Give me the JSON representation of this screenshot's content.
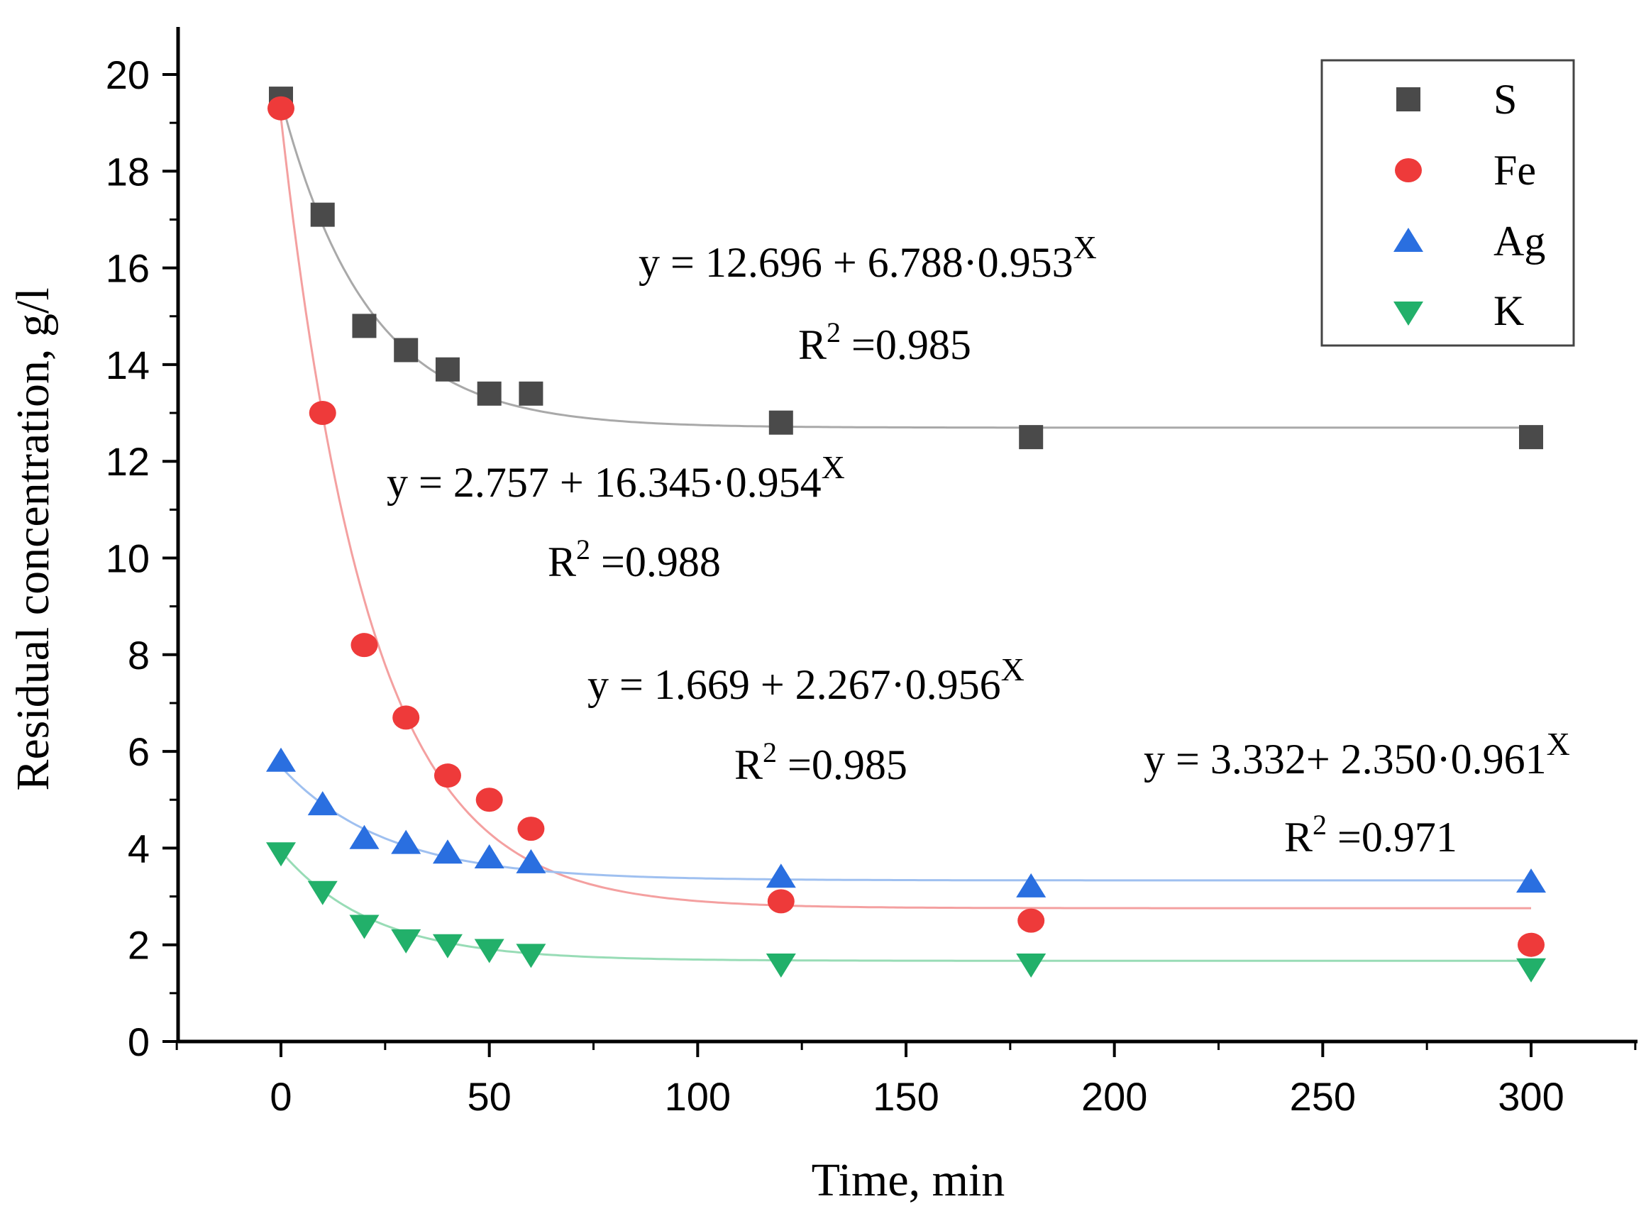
{
  "chart_data": {
    "type": "scatter",
    "xlabel": "Time, min",
    "ylabel": "Residual concentration, g/l",
    "xlim": [
      -25,
      325
    ],
    "ylim": [
      0,
      21
    ],
    "x_ticks": [
      "0",
      "50",
      "100",
      "150",
      "200",
      "250",
      "300"
    ],
    "y_ticks": [
      "0",
      "2",
      "4",
      "6",
      "8",
      "10",
      "12",
      "14",
      "16",
      "18",
      "20"
    ],
    "x_tick_values": [
      0,
      50,
      100,
      150,
      200,
      250,
      300
    ],
    "y_tick_values": [
      0,
      2,
      4,
      6,
      8,
      10,
      12,
      14,
      16,
      18,
      20
    ],
    "legend_position": "top-right",
    "series": [
      {
        "name": "S",
        "marker": "square",
        "color": "#4a4a4a",
        "fit_color": "#a9a9a9",
        "x": [
          0,
          10,
          20,
          30,
          40,
          50,
          60,
          120,
          180,
          300
        ],
        "y": [
          19.5,
          17.1,
          14.8,
          14.3,
          13.9,
          13.4,
          13.4,
          12.8,
          12.5,
          12.5
        ],
        "fit": {
          "a": 12.696,
          "b": 6.788,
          "c": 0.953
        },
        "equation": {
          "prefix": "y = 12.696 + 6.788·0.953",
          "exp": "X"
        },
        "r2": {
          "label": "R",
          "sup": "2",
          "value": " =0.985"
        }
      },
      {
        "name": "Fe",
        "marker": "circle",
        "color": "#ee3a3a",
        "fit_color": "#f4a0a0",
        "x": [
          0,
          10,
          20,
          30,
          40,
          50,
          60,
          120,
          180,
          300
        ],
        "y": [
          19.3,
          13.0,
          8.2,
          6.7,
          5.5,
          5.0,
          4.4,
          2.9,
          2.5,
          2.0
        ],
        "fit": {
          "a": 2.757,
          "b": 16.345,
          "c": 0.954
        },
        "equation": {
          "prefix": "y = 2.757 + 16.345·0.954",
          "exp": "X"
        },
        "r2": {
          "label": "R",
          "sup": "2",
          "value": " =0.988"
        }
      },
      {
        "name": "Ag",
        "marker": "triangle-up",
        "color": "#2a6fe0",
        "fit_color": "#9fc0f0",
        "x": [
          0,
          10,
          20,
          30,
          40,
          50,
          60,
          120,
          180,
          300
        ],
        "y": [
          5.8,
          4.9,
          4.2,
          4.1,
          3.9,
          3.8,
          3.7,
          3.4,
          3.2,
          3.3
        ],
        "fit": {
          "a": 3.332,
          "b": 2.35,
          "c": 0.961
        },
        "equation": {
          "prefix": "y = 3.332+ 2.350·0.961",
          "exp": "X"
        },
        "r2": {
          "label": "R",
          "sup": "2",
          "value": " =0.971"
        }
      },
      {
        "name": "K",
        "marker": "triangle-down",
        "color": "#22b06a",
        "fit_color": "#98dcb6",
        "x": [
          0,
          10,
          20,
          30,
          40,
          50,
          60,
          120,
          180,
          300
        ],
        "y": [
          3.9,
          3.1,
          2.4,
          2.1,
          2.0,
          1.9,
          1.8,
          1.6,
          1.6,
          1.5
        ],
        "fit": {
          "a": 1.669,
          "b": 2.267,
          "c": 0.956
        },
        "equation": {
          "prefix": "y = 1.669 + 2.267·0.956",
          "exp": "X"
        },
        "r2": {
          "label": "R",
          "sup": "2",
          "value": " =0.985"
        }
      }
    ]
  }
}
